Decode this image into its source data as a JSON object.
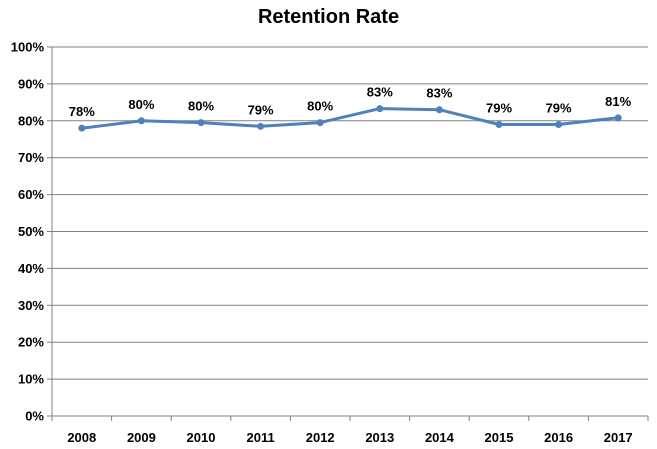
{
  "chart_data": {
    "type": "line",
    "title": "Retention Rate",
    "xlabel": "",
    "ylabel": "",
    "categories": [
      "2008",
      "2009",
      "2010",
      "2011",
      "2012",
      "2013",
      "2014",
      "2015",
      "2016",
      "2017"
    ],
    "series": [
      {
        "values": [
          78,
          80,
          79.5,
          78.5,
          79.5,
          83.3,
          83,
          79,
          79,
          80.8
        ],
        "labels": [
          "78%",
          "80%",
          "80%",
          "79%",
          "80%",
          "83%",
          "83%",
          "79%",
          "79%",
          "81%"
        ],
        "color": "#4F81BD"
      }
    ],
    "ylim": [
      0,
      100
    ],
    "yticks": [
      0,
      10,
      20,
      30,
      40,
      50,
      60,
      70,
      80,
      90,
      100
    ],
    "ytick_labels": [
      "0%",
      "10%",
      "20%",
      "30%",
      "40%",
      "50%",
      "60%",
      "70%",
      "80%",
      "90%",
      "100%"
    ],
    "grid": true,
    "legend": "none",
    "gridline_color": "#808080"
  }
}
